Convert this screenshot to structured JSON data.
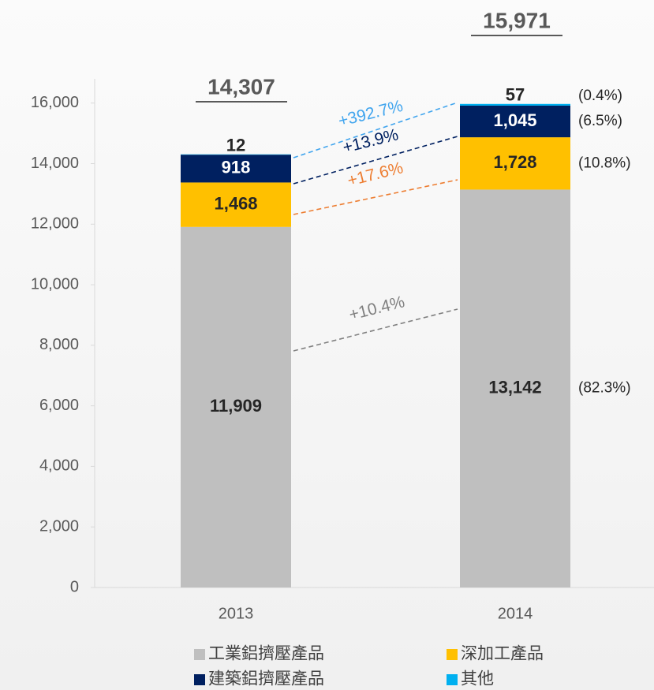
{
  "chart_data": {
    "type": "stacked_bar",
    "categories": [
      "2013",
      "2014"
    ],
    "ylim": [
      0,
      16800
    ],
    "yticks": [
      {
        "value": 0,
        "label": "0"
      },
      {
        "value": 2000,
        "label": "2,000"
      },
      {
        "value": 4000,
        "label": "4,000"
      },
      {
        "value": 6000,
        "label": "6,000"
      },
      {
        "value": 8000,
        "label": "8,000"
      },
      {
        "value": 10000,
        "label": "10,000"
      },
      {
        "value": 12000,
        "label": "12,000"
      },
      {
        "value": 14000,
        "label": "14,000"
      },
      {
        "value": 16000,
        "label": "16,000"
      }
    ],
    "totals": [
      14307,
      15971
    ],
    "total_labels": [
      "14,307",
      "15,971"
    ],
    "series": [
      {
        "name": "工業鋁擠壓產品",
        "color": "#bfbfbf",
        "line_color": "#808080",
        "values": [
          11909,
          13142
        ],
        "value_labels": [
          "11,909",
          "13,142"
        ],
        "share_label": "(82.3%)",
        "growth_label": "+10.4%"
      },
      {
        "name": "深加工產品",
        "color": "#ffc000",
        "line_color": "#ed7d31",
        "values": [
          1468,
          1728
        ],
        "value_labels": [
          "1,468",
          "1,728"
        ],
        "share_label": "(10.8%)",
        "growth_label": "+17.6%"
      },
      {
        "name": "建築鋁擠壓產品",
        "color": "#002060",
        "line_color": "#002060",
        "values": [
          918,
          1045
        ],
        "value_labels": [
          "918",
          "1,045"
        ],
        "share_label": "(6.5%)",
        "growth_label": "+13.9%"
      },
      {
        "name": "其他",
        "color": "#00b0f0",
        "line_color": "#41a5ee",
        "values": [
          12,
          57
        ],
        "value_labels": [
          "12",
          "57"
        ],
        "share_label": "(0.4%)",
        "growth_label": "+392.7%"
      }
    ]
  }
}
